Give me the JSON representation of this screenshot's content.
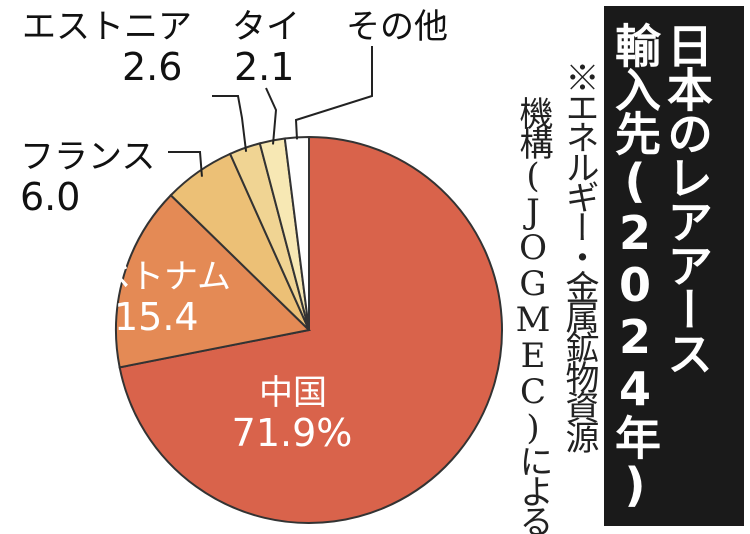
{
  "title": {
    "line1": "日本のレアアース",
    "line2": "輸入先(2024年)"
  },
  "source": {
    "line1": "※エネルギー・金属鉱物資源",
    "line2": "機構(JOGMEC)による"
  },
  "chart_data": {
    "type": "pie",
    "unit": "%",
    "start": "12 o'clock, clockwise",
    "slices": [
      {
        "label": "中国",
        "value": 71.9,
        "value_text": "71.9%",
        "color": "#d9634b"
      },
      {
        "label": "ベトナム",
        "value": 15.4,
        "value_text": "15.4",
        "color": "#e48a55"
      },
      {
        "label": "フランス",
        "value": 6.0,
        "value_text": "6.0",
        "color": "#ecc076"
      },
      {
        "label": "エストニア",
        "value": 2.6,
        "value_text": "2.6",
        "color": "#f0d493"
      },
      {
        "label": "タイ",
        "value": 2.1,
        "value_text": "2.1",
        "color": "#f7e8b4"
      },
      {
        "label": "その他",
        "value": 2.0,
        "value_text": "",
        "color": "#ffffff"
      }
    ],
    "stroke_color": "#333333",
    "label_colors": {
      "inside": "#ffffff",
      "outside": "#111111"
    }
  }
}
